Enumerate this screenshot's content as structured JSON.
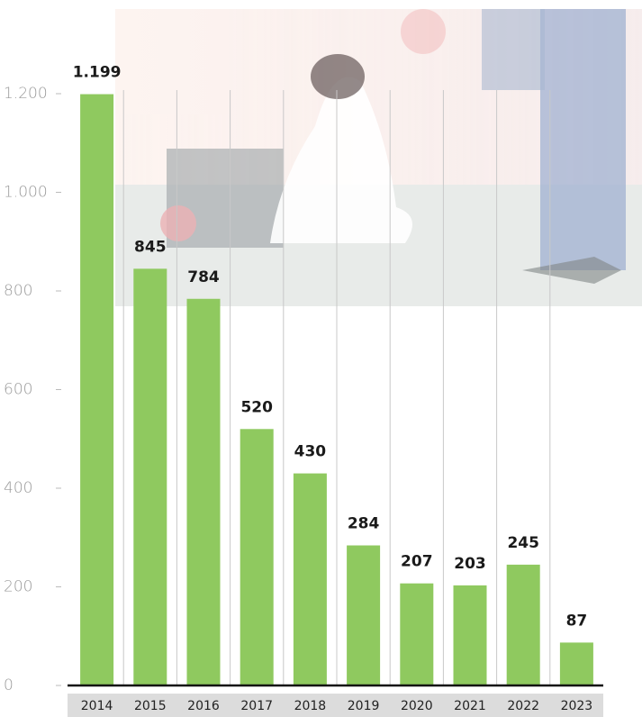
{
  "chart_data": {
    "type": "bar",
    "categories": [
      "2014",
      "2015",
      "2016",
      "2017",
      "2018",
      "2019",
      "2020",
      "2021",
      "2022",
      "2023"
    ],
    "values": [
      1199,
      845,
      784,
      520,
      430,
      284,
      207,
      203,
      245,
      87
    ],
    "value_labels": [
      "1.199",
      "845",
      "784",
      "520",
      "430",
      "284",
      "207",
      "203",
      "245",
      "87"
    ],
    "color": "#8fc95f",
    "ylim": [
      0,
      1200
    ],
    "yticks": [
      0,
      200,
      400,
      600,
      800,
      {
        "value": 1000,
        "label": "1.000"
      },
      {
        "value": 1200,
        "label": "1.200"
      }
    ],
    "grid": true
  }
}
